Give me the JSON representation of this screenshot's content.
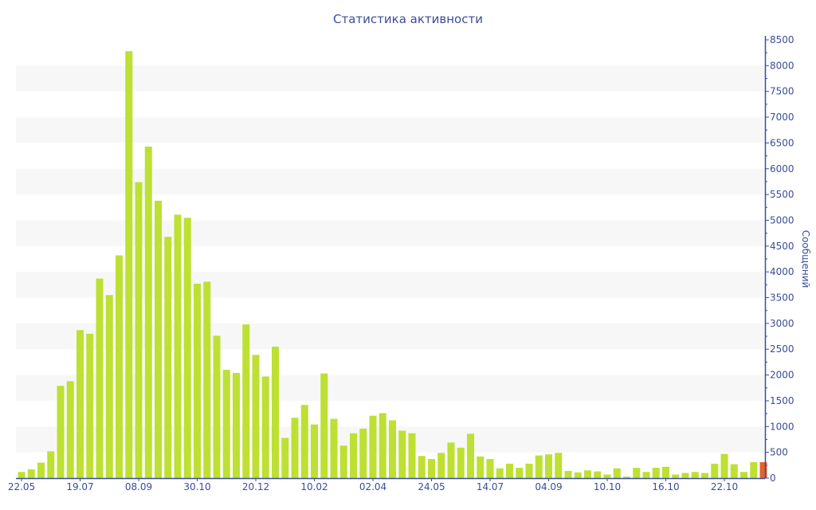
{
  "chart_data": {
    "type": "bar",
    "title": "Статистика активности",
    "xlabel": "",
    "ylabel": "Сообщений",
    "ylim": [
      0,
      8500
    ],
    "yticks": [
      0,
      500,
      1000,
      1500,
      2000,
      2500,
      3000,
      3500,
      4000,
      4500,
      5000,
      5500,
      6000,
      6500,
      7000,
      7500,
      8000,
      8500
    ],
    "xtick_labels": [
      {
        "index": 0,
        "label": "22.05"
      },
      {
        "index": 6,
        "label": "19.07"
      },
      {
        "index": 12,
        "label": "08.09"
      },
      {
        "index": 18,
        "label": "30.10"
      },
      {
        "index": 24,
        "label": "20.12"
      },
      {
        "index": 30,
        "label": "10.02"
      },
      {
        "index": 36,
        "label": "02.04"
      },
      {
        "index": 42,
        "label": "24.05"
      },
      {
        "index": 48,
        "label": "14.07"
      },
      {
        "index": 54,
        "label": "04.09"
      },
      {
        "index": 60,
        "label": "10.10"
      },
      {
        "index": 66,
        "label": "16.10"
      },
      {
        "index": 72,
        "label": "22.10"
      }
    ],
    "values": [
      120,
      170,
      300,
      520,
      1790,
      1880,
      2870,
      2800,
      3870,
      3550,
      4320,
      8280,
      5740,
      6430,
      5380,
      4680,
      5110,
      5050,
      3770,
      3810,
      2760,
      2100,
      2040,
      2980,
      2390,
      1970,
      2550,
      780,
      1170,
      1420,
      1040,
      2030,
      1150,
      630,
      870,
      960,
      1210,
      1260,
      1120,
      920,
      870,
      430,
      370,
      490,
      690,
      590,
      860,
      420,
      370,
      190,
      280,
      200,
      280,
      440,
      460,
      490,
      140,
      110,
      150,
      130,
      70,
      190,
      30,
      200,
      120,
      200,
      220,
      70,
      100,
      120,
      100,
      280,
      470,
      270,
      120,
      310,
      310
    ],
    "highlight_index": 76,
    "colors": {
      "bar": "#bde032",
      "highlight": "#e2632c",
      "axis": "#3b4c9b",
      "band": "#f7f7f7"
    },
    "grid": "alternating-bands",
    "legend": "none"
  }
}
